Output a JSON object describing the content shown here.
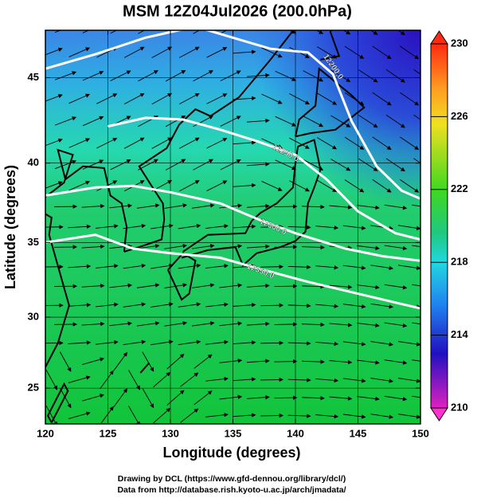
{
  "title": "MSM 12Z04Jul2026 (200.0hPa)",
  "x_axis": {
    "label": "Longitude (degrees)",
    "lim": [
      120,
      150
    ],
    "ticks": [
      120,
      125,
      130,
      135,
      140,
      145,
      150
    ]
  },
  "y_axis": {
    "label": "Latitude  (degrees)",
    "lim": [
      22.4,
      47.6
    ],
    "ticks": [
      25,
      30,
      35,
      40,
      45
    ],
    "projection": "mercator"
  },
  "colorbar": {
    "lim": [
      210,
      230
    ],
    "ticks": [
      210,
      214,
      218,
      222,
      226,
      230
    ]
  },
  "contours": [
    {
      "label": "12200.0"
    },
    {
      "label": "12250.0"
    },
    {
      "label": "12300.0"
    },
    {
      "label": "12350.0"
    }
  ],
  "footer": [
    "Drawing by DCL (https://www.gfd-dennou.org/library/dcl/)",
    "Data from http://database.rish.kyoto-u.ac.jp/arch/jmadata/"
  ]
}
